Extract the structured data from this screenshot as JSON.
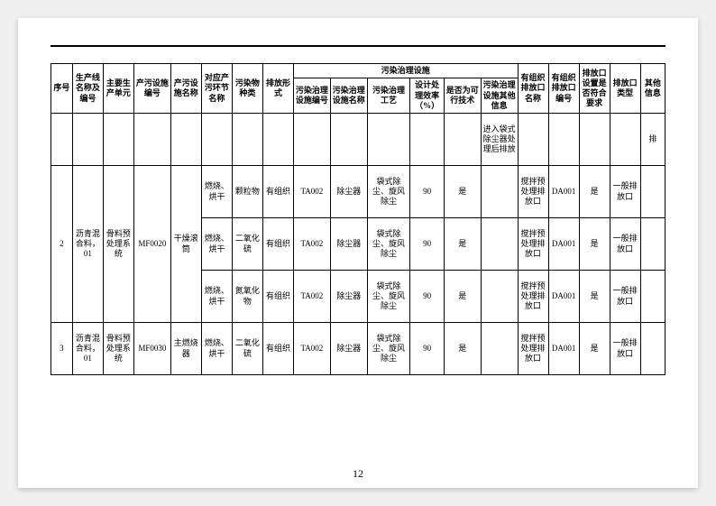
{
  "page_number": "12",
  "headers": {
    "seq": "序号",
    "line": "生产线名称及编号",
    "unit": "主要生产单元",
    "facility_no": "产污设施编号",
    "facility_name": "产污设施名称",
    "segment": "对应产污环节名称",
    "pollutant": "污染物种类",
    "emission_form": "排放形式",
    "treatment_group": "污染治理设施",
    "treat_no": "污染治理设施编号",
    "treat_name": "污染治理设施名称",
    "treat_process": "污染治理工艺",
    "efficiency": "设计处理效率（%）",
    "feasible": "是否为可行技术",
    "treat_other": "污染治理设施其他信息",
    "outlet_name": "有组织排放口名称",
    "outlet_no": "有组织排放口编号",
    "outlet_compliance": "排放口设置是否符合要求",
    "outlet_type": "排放口类型",
    "other": "其他信息"
  },
  "top_partial_row": {
    "treat_other": "进入袋式除尘器处理后排放",
    "other_info": "排"
  },
  "groups": [
    {
      "seq": "2",
      "line": "沥青混合料，01",
      "unit": "骨料预处理系统",
      "facility_no": "MF0020",
      "facility_name": "干燥滚筒",
      "rows": [
        {
          "segment": "燃烧、烘干",
          "pollutant": "颗粒物",
          "emission_form": "有组织",
          "treat_no": "TA002",
          "treat_name": "除尘器",
          "treat_process": "袋式除尘、旋风除尘",
          "efficiency": "90",
          "feasible": "是",
          "treat_other": "",
          "outlet_name": "搅拌预处理排放口",
          "outlet_no": "DA001",
          "compliance": "是",
          "outlet_type": "一般排放口",
          "other_info": ""
        },
        {
          "segment": "燃烧、烘干",
          "pollutant": "二氧化硫",
          "emission_form": "有组织",
          "treat_no": "TA002",
          "treat_name": "除尘器",
          "treat_process": "袋式除尘、旋风除尘",
          "efficiency": "90",
          "feasible": "是",
          "treat_other": "",
          "outlet_name": "搅拌预处理排放口",
          "outlet_no": "DA001",
          "compliance": "是",
          "outlet_type": "一般排放口",
          "other_info": ""
        },
        {
          "segment": "燃烧、烘干",
          "pollutant": "氮氧化物",
          "emission_form": "有组织",
          "treat_no": "TA002",
          "treat_name": "除尘器",
          "treat_process": "袋式除尘、旋风除尘",
          "efficiency": "90",
          "feasible": "是",
          "treat_other": "",
          "outlet_name": "搅拌预处理排放口",
          "outlet_no": "DA001",
          "compliance": "是",
          "outlet_type": "一般排放口",
          "other_info": ""
        }
      ]
    },
    {
      "seq": "3",
      "line": "沥青混合料，01",
      "unit": "骨料预处理系统",
      "facility_no": "MF0030",
      "facility_name": "主燃烧器",
      "rows": [
        {
          "segment": "燃烧、烘干",
          "pollutant": "二氧化硫",
          "emission_form": "有组织",
          "treat_no": "TA002",
          "treat_name": "除尘器",
          "treat_process": "袋式除尘、旋风除尘",
          "efficiency": "90",
          "feasible": "是",
          "treat_other": "",
          "outlet_name": "搅拌预处理排放口",
          "outlet_no": "DA001",
          "compliance": "是",
          "outlet_type": "一般排放口",
          "other_info": ""
        }
      ]
    }
  ],
  "style": {
    "row_height_top": 58,
    "row_height_data": 58
  }
}
